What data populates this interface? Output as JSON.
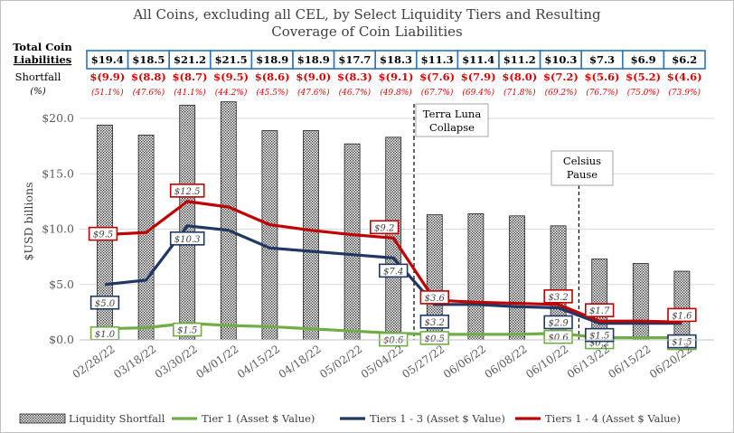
{
  "chart_data": {
    "type": "bar",
    "title": "All Coins, excluding all CEL, by Select Liquidity Tiers and Resulting Coverage of Coin Liabilities",
    "title_lines": [
      "All Coins, excluding all CEL, by Select Liquidity Tiers and Resulting",
      "Coverage of Coin Liabilities"
    ],
    "ylabel": "$USD billions",
    "ylim": [
      0,
      20
    ],
    "yticks": [
      "$0.0",
      "$5.0",
      "$10.0",
      "$15.0",
      "$20.0"
    ],
    "categories": [
      "02/28/22",
      "03/18/22",
      "03/30/22",
      "04/01/22",
      "04/15/22",
      "04/18/22",
      "05/02/22",
      "05/04/22",
      "05/27/22",
      "06/06/22",
      "06/08/22",
      "06/10/22",
      "06/13/22",
      "06/15/22",
      "06/20/22"
    ],
    "series": [
      {
        "name": "Liquidity Shortfall",
        "kind": "bar",
        "color": "#000000",
        "values": [
          19.4,
          18.5,
          21.2,
          21.5,
          18.9,
          18.9,
          17.7,
          18.3,
          11.3,
          11.4,
          11.2,
          10.3,
          7.3,
          6.9,
          6.2
        ]
      },
      {
        "name": "Tier 1 (Asset $ Value)",
        "kind": "line",
        "color": "#70ad47",
        "values": [
          1.0,
          1.1,
          1.5,
          1.3,
          1.2,
          1.0,
          0.8,
          0.6,
          0.5,
          0.5,
          0.5,
          0.6,
          0.2,
          0.2,
          0.2
        ],
        "labels": [
          {
            "index": 0,
            "text": "$1.0"
          },
          {
            "index": 2,
            "text": "$1.5"
          },
          {
            "index": 7,
            "text": "$0.6"
          },
          {
            "index": 8,
            "text": "$0.5"
          },
          {
            "index": 11,
            "text": "$0.6"
          },
          {
            "index": 12,
            "text": "$0.2"
          },
          {
            "index": 14,
            "text": "$0.2"
          }
        ]
      },
      {
        "name": "Tiers 1 - 3 (Asset $ Value)",
        "kind": "line",
        "color": "#1f3864",
        "values": [
          5.0,
          5.4,
          10.3,
          9.9,
          8.3,
          8.0,
          7.7,
          7.4,
          3.2,
          3.2,
          3.0,
          2.9,
          1.5,
          1.5,
          1.5
        ],
        "labels": [
          {
            "index": 0,
            "text": "$5.0"
          },
          {
            "index": 2,
            "text": "$10.3"
          },
          {
            "index": 7,
            "text": "$7.4"
          },
          {
            "index": 8,
            "text": "$3.2"
          },
          {
            "index": 11,
            "text": "$2.9"
          },
          {
            "index": 12,
            "text": "$1.5"
          },
          {
            "index": 14,
            "text": "$1.5"
          }
        ]
      },
      {
        "name": "Tiers 1 - 4 (Asset $ Value)",
        "kind": "line",
        "color": "#c00000",
        "values": [
          9.5,
          9.7,
          12.5,
          12.0,
          10.4,
          9.9,
          9.5,
          9.2,
          3.6,
          3.4,
          3.3,
          3.2,
          1.7,
          1.7,
          1.6
        ],
        "labels": [
          {
            "index": 0,
            "text": "$9.5"
          },
          {
            "index": 2,
            "text": "$12.5"
          },
          {
            "index": 7,
            "text": "$9.2"
          },
          {
            "index": 8,
            "text": "$3.6"
          },
          {
            "index": 11,
            "text": "$3.2"
          },
          {
            "index": 12,
            "text": "$1.7"
          },
          {
            "index": 14,
            "text": "$1.6"
          }
        ]
      }
    ],
    "table": {
      "liabilities_label": "Total Coin Liabilities",
      "shortfall_label": "Shortfall",
      "shortfall_unit": "(%)",
      "liabilities": [
        "$19.4",
        "$18.5",
        "$21.2",
        "$21.5",
        "$18.9",
        "$18.9",
        "$17.7",
        "$18.3",
        "$11.3",
        "$11.4",
        "$11.2",
        "$10.3",
        "$7.3",
        "$6.9",
        "$6.2"
      ],
      "shortfalls": [
        "$(9.9)",
        "$(8.8)",
        "$(8.7)",
        "$(9.5)",
        "$(8.6)",
        "$(9.0)",
        "$(8.3)",
        "$(9.1)",
        "$(7.6)",
        "$(7.9)",
        "$(8.0)",
        "$(7.2)",
        "$(5.6)",
        "$(5.2)",
        "$(4.6)"
      ],
      "shortfall_pcts": [
        "(51.1%)",
        "(47.6%)",
        "(41.1%)",
        "(44.2%)",
        "(45.5%)",
        "(47.6%)",
        "(46.7%)",
        "(49.8%)",
        "(67.7%)",
        "(69.4%)",
        "(71.8%)",
        "(69.2%)",
        "(76.7%)",
        "(75.0%)",
        "(73.9%)"
      ]
    },
    "annotations": [
      {
        "text_lines": [
          "Terra Luna",
          "Collapse"
        ],
        "after_index": 7
      },
      {
        "text_lines": [
          "Celsius",
          "Pause"
        ],
        "after_index": 11
      }
    ],
    "legend_position": "bottom",
    "grid": "horizontal"
  }
}
